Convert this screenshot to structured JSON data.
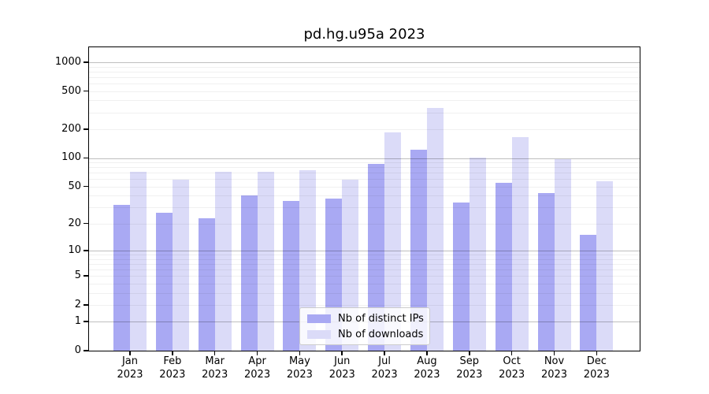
{
  "chart": {
    "title": "pd.hg.u95a 2023"
  },
  "chart_data": {
    "type": "bar",
    "title": "pd.hg.u95a 2023",
    "categories": [
      "Jan",
      "Feb",
      "Mar",
      "Apr",
      "May",
      "Jun",
      "Jul",
      "Aug",
      "Sep",
      "Oct",
      "Nov",
      "Dec"
    ],
    "category_year": "2023",
    "series": [
      {
        "name": "Nb of distinct IPs",
        "color": "#a9a9f3",
        "values": [
          32,
          26,
          23,
          40,
          35,
          37,
          86,
          123,
          34,
          55,
          43,
          15
        ]
      },
      {
        "name": "Nb of downloads",
        "color": "#dbdbf8",
        "values": [
          71,
          59,
          72,
          71,
          74,
          59,
          184,
          335,
          100,
          165,
          97,
          57
        ]
      }
    ],
    "xlabel": "",
    "ylabel": "",
    "y_scale": "log10(1+y)",
    "y_ticks": [
      1000,
      500,
      200,
      100,
      50,
      20,
      10,
      5,
      2,
      1,
      0
    ],
    "ylim": [
      0,
      1450
    ],
    "grid": "horizontal log minor and major lines drawn over bars",
    "legend_position": "lower center inside plot",
    "colors": {
      "background": "#ffffff",
      "axis": "#000000",
      "text": "#000000",
      "grid_major": "rgba(0,0,0,0.25)",
      "grid_minor": "rgba(0,0,0,0.06)",
      "legend_border": "#cccccc"
    }
  }
}
